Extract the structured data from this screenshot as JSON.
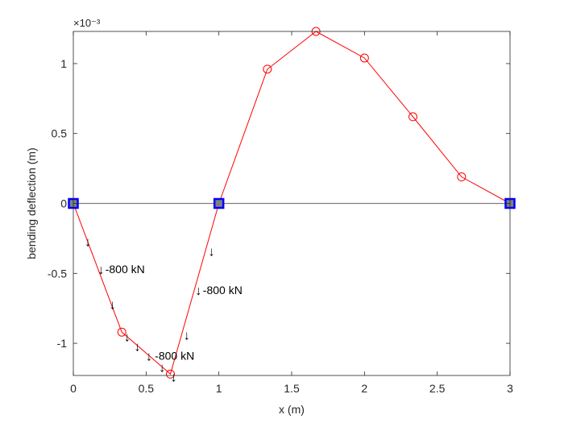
{
  "chart_data": {
    "type": "line",
    "xlabel": "x (m)",
    "ylabel": "bending deflection (m)",
    "exponent_label": "×10⁻³",
    "y_scale": 0.001,
    "xlim": [
      0,
      3
    ],
    "ylim": [
      -1.23,
      1.23
    ],
    "xticks": [
      0,
      0.5,
      1,
      1.5,
      2,
      2.5,
      3
    ],
    "xtick_labels": [
      "0",
      "0.5",
      "1",
      "1.5",
      "2",
      "2.5",
      "3"
    ],
    "yticks": [
      -1,
      -0.5,
      0,
      0.5,
      1
    ],
    "ytick_labels": [
      "-1",
      "-0.5",
      "0",
      "0.5",
      "1"
    ],
    "grid": false,
    "series": [
      {
        "style": "line-circle",
        "color": "#ff0000",
        "x": [
          0,
          0.333,
          0.667,
          1.0,
          1.333,
          1.667,
          2.0,
          2.333,
          2.667,
          3.0
        ],
        "y": [
          0,
          -0.92,
          -1.22,
          0,
          0.96,
          1.23,
          1.04,
          0.62,
          0.19,
          0
        ]
      }
    ],
    "baseline": {
      "color": "#808080",
      "y": 0
    },
    "supports": {
      "x": [
        0,
        1,
        3
      ],
      "fill": "#808080",
      "edge": "#0000ff"
    },
    "load_arrows": {
      "glyph": "↓",
      "points": [
        {
          "x": 0.1,
          "y": -0.27
        },
        {
          "x": 0.19,
          "y": -0.47
        },
        {
          "x": 0.27,
          "y": -0.72
        },
        {
          "x": 0.37,
          "y": -0.95
        },
        {
          "x": 0.44,
          "y": -1.02
        },
        {
          "x": 0.52,
          "y": -1.09
        },
        {
          "x": 0.61,
          "y": -1.17
        },
        {
          "x": 0.69,
          "y": -1.24
        },
        {
          "x": 0.78,
          "y": -0.94
        },
        {
          "x": 0.86,
          "y": -0.62
        },
        {
          "x": 0.95,
          "y": -0.34
        }
      ]
    },
    "annotations": [
      {
        "text": "-800 kN",
        "x": 0.22,
        "y": -0.47
      },
      {
        "text": "-800 kN",
        "x": 0.56,
        "y": -1.09
      },
      {
        "text": "-800 kN",
        "x": 0.89,
        "y": -0.62
      }
    ]
  }
}
